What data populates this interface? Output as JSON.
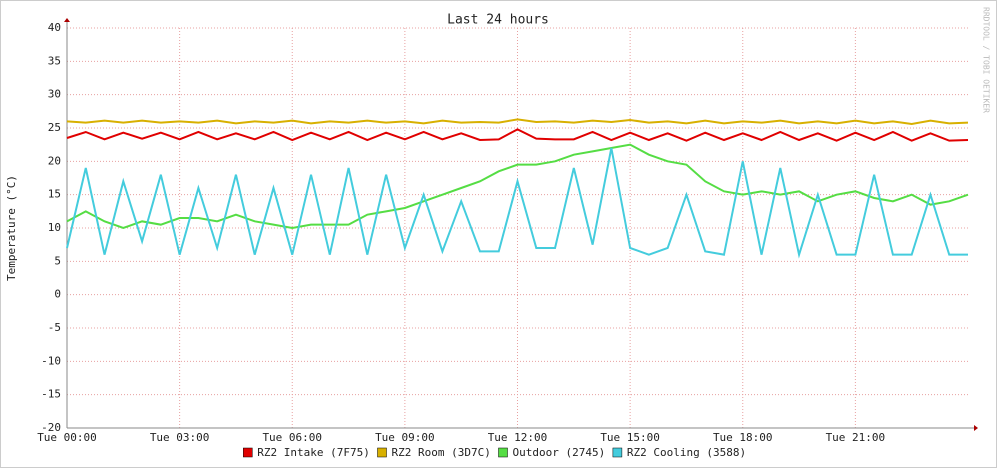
{
  "chart_data": {
    "type": "line",
    "title": "Last 24 hours",
    "y_label": "Temperature (°C)",
    "watermark": "RRDTOOL / TOBI OETIKER",
    "x": [
      0,
      0.5,
      1,
      1.5,
      2,
      2.5,
      3,
      3.5,
      4,
      4.5,
      5,
      5.5,
      6,
      6.5,
      7,
      7.5,
      8,
      8.5,
      9,
      9.5,
      10,
      10.5,
      11,
      11.5,
      12,
      12.5,
      13,
      13.5,
      14,
      14.5,
      15,
      15.5,
      16,
      16.5,
      17,
      17.5,
      18,
      18.5,
      19,
      19.5,
      20,
      20.5,
      21,
      21.5,
      22,
      22.5,
      23,
      23.5,
      24
    ],
    "xlim": [
      0,
      24
    ],
    "xticks": [
      {
        "value": 0,
        "label": "Tue 00:00"
      },
      {
        "value": 3,
        "label": "Tue 03:00"
      },
      {
        "value": 6,
        "label": "Tue 06:00"
      },
      {
        "value": 9,
        "label": "Tue 09:00"
      },
      {
        "value": 12,
        "label": "Tue 12:00"
      },
      {
        "value": 15,
        "label": "Tue 15:00"
      },
      {
        "value": 18,
        "label": "Tue 18:00"
      },
      {
        "value": 21,
        "label": "Tue 21:00"
      }
    ],
    "ylim": [
      -20,
      40
    ],
    "yticks": [
      -20,
      -15,
      -10,
      -5,
      0,
      5,
      10,
      15,
      20,
      25,
      30,
      35,
      40
    ],
    "grid": true,
    "series": [
      {
        "name": "RZ2 Intake (7F75)",
        "color": "#e00000",
        "values": [
          23.5,
          24.4,
          23.3,
          24.3,
          23.4,
          24.3,
          23.3,
          24.4,
          23.3,
          24.2,
          23.3,
          24.4,
          23.2,
          24.3,
          23.3,
          24.4,
          23.2,
          24.3,
          23.3,
          24.4,
          23.3,
          24.2,
          23.2,
          23.3,
          24.8,
          23.4,
          23.3,
          23.3,
          24.4,
          23.2,
          24.3,
          23.2,
          24.2,
          23.1,
          24.3,
          23.2,
          24.2,
          23.2,
          24.4,
          23.2,
          24.2,
          23.1,
          24.3,
          23.2,
          24.4,
          23.1,
          24.2,
          23.1,
          23.2
        ]
      },
      {
        "name": "RZ2 Room (3D7C)",
        "color": "#d8b000",
        "values": [
          26.0,
          25.8,
          26.1,
          25.8,
          26.1,
          25.8,
          26.0,
          25.8,
          26.1,
          25.7,
          26.0,
          25.8,
          26.1,
          25.7,
          26.0,
          25.8,
          26.1,
          25.8,
          26.0,
          25.7,
          26.1,
          25.8,
          25.9,
          25.8,
          26.3,
          25.9,
          26.0,
          25.8,
          26.1,
          25.9,
          26.2,
          25.8,
          26.0,
          25.7,
          26.1,
          25.7,
          26.0,
          25.8,
          26.1,
          25.7,
          26.0,
          25.7,
          26.1,
          25.7,
          26.0,
          25.6,
          26.1,
          25.7,
          25.8
        ]
      },
      {
        "name": "Outdoor (2745)",
        "color": "#55dd44",
        "values": [
          11,
          12.5,
          11,
          10,
          11,
          10.5,
          11.5,
          11.5,
          11,
          12,
          11,
          10.5,
          10,
          10.5,
          10.5,
          10.5,
          12,
          12.5,
          13,
          14,
          15,
          16,
          17,
          18.5,
          19.5,
          19.5,
          20,
          21,
          21.5,
          22,
          22.5,
          21,
          20,
          19.5,
          17,
          15.5,
          15,
          15.5,
          15,
          15.5,
          14,
          15,
          15.5,
          14.5,
          14,
          15,
          13.5,
          14,
          15
        ]
      },
      {
        "name": "RZ2 Cooling (3588)",
        "color": "#44ccdd",
        "values": [
          7,
          19,
          6,
          17,
          8,
          18,
          6,
          16,
          7,
          18,
          6,
          16,
          6,
          18,
          6,
          19,
          6,
          18,
          7,
          15,
          6.5,
          14,
          6.5,
          6.5,
          17,
          7,
          7,
          19,
          7.5,
          22,
          7,
          6,
          7,
          15,
          6.5,
          6,
          20,
          6,
          19,
          6,
          15,
          6,
          6,
          18,
          6,
          6,
          15,
          6,
          6
        ]
      }
    ]
  }
}
